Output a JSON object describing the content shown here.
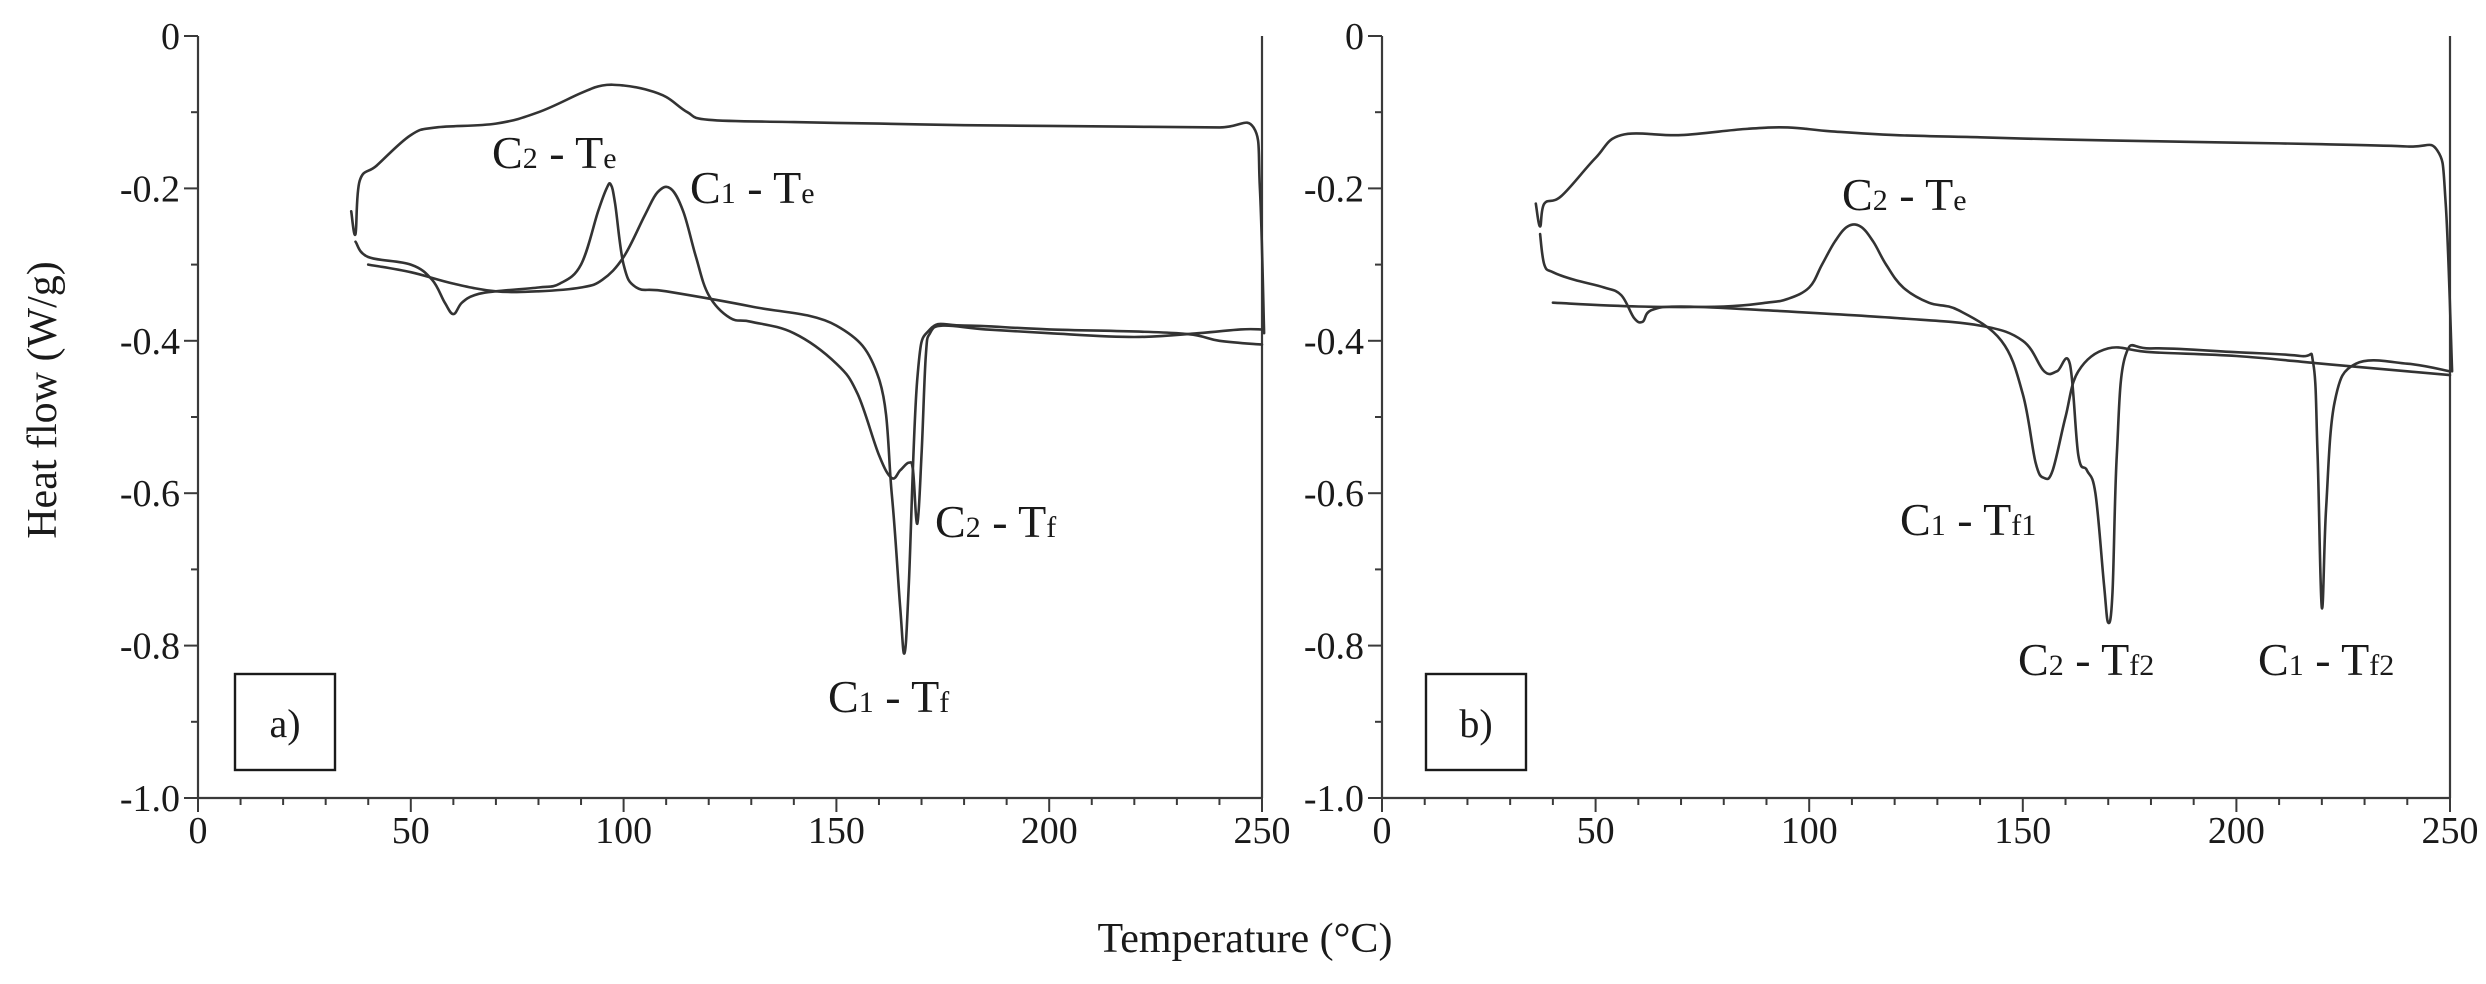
{
  "figure": {
    "ylabel": "Heat flow (W/g)",
    "xlabel": "Temperature (°C)"
  },
  "chart_data": [
    {
      "type": "line",
      "panel_label": "a)",
      "xlim": [
        0,
        250
      ],
      "ylim": [
        -1.0,
        0
      ],
      "x_ticks": [
        "0",
        "50",
        "100",
        "150",
        "200",
        "250"
      ],
      "y_ticks": [
        "0",
        "-0.2",
        "-0.4",
        "-0.6",
        "-0.8",
        "-1.0"
      ],
      "grid": false,
      "series": [
        {
          "x": [
            36,
            37,
            38,
            42,
            50,
            56,
            70,
            80,
            90,
            95,
            100,
            105,
            110,
            115,
            120,
            140,
            160,
            180,
            200,
            220,
            240,
            248,
            249.5,
            250.5
          ],
          "values": [
            -0.23,
            -0.26,
            -0.19,
            -0.17,
            -0.13,
            -0.12,
            -0.115,
            -0.1,
            -0.075,
            -0.065,
            -0.065,
            -0.07,
            -0.08,
            -0.1,
            -0.11,
            -0.113,
            -0.115,
            -0.117,
            -0.118,
            -0.119,
            -0.12,
            -0.12,
            -0.2,
            -0.39
          ]
        },
        {
          "x": [
            37,
            40,
            50,
            55,
            58,
            60,
            62,
            65,
            70,
            80,
            85,
            90,
            94,
            96,
            97,
            98,
            100,
            103,
            110,
            130,
            150,
            160,
            163,
            165,
            166,
            167,
            169,
            172,
            180,
            200,
            230,
            240,
            250
          ],
          "values": [
            -0.27,
            -0.29,
            -0.3,
            -0.32,
            -0.35,
            -0.365,
            -0.35,
            -0.34,
            -0.335,
            -0.33,
            -0.325,
            -0.3,
            -0.23,
            -0.2,
            -0.195,
            -0.22,
            -0.3,
            -0.33,
            -0.335,
            -0.355,
            -0.38,
            -0.45,
            -0.6,
            -0.75,
            -0.81,
            -0.72,
            -0.45,
            -0.385,
            -0.38,
            -0.385,
            -0.39,
            -0.4,
            -0.405
          ]
        },
        {
          "x": [
            40,
            50,
            60,
            70,
            80,
            90,
            95,
            100,
            105,
            108,
            111,
            114,
            117,
            120,
            125,
            130,
            140,
            150,
            155,
            160,
            163,
            165,
            167,
            168,
            169,
            170,
            171,
            172,
            175,
            185,
            200,
            220,
            235,
            245,
            250
          ],
          "values": [
            -0.3,
            -0.31,
            -0.325,
            -0.335,
            -0.335,
            -0.33,
            -0.32,
            -0.29,
            -0.235,
            -0.205,
            -0.2,
            -0.23,
            -0.29,
            -0.34,
            -0.37,
            -0.375,
            -0.39,
            -0.43,
            -0.47,
            -0.55,
            -0.58,
            -0.57,
            -0.56,
            -0.57,
            -0.64,
            -0.55,
            -0.42,
            -0.39,
            -0.38,
            -0.385,
            -0.39,
            -0.395,
            -0.39,
            -0.385,
            -0.385
          ]
        }
      ],
      "annotations": [
        {
          "main": "C",
          "sub": "2",
          "text": " - T",
          "sub2": "e"
        },
        {
          "main": "C",
          "sub": "1",
          "text": " - T",
          "sub2": "e"
        },
        {
          "main": "C",
          "sub": "2",
          "text": " - T",
          "sub2": "f"
        },
        {
          "main": "C",
          "sub": "1",
          "text": " - T",
          "sub2": "f"
        }
      ]
    },
    {
      "type": "line",
      "panel_label": "b)",
      "xlim": [
        0,
        250
      ],
      "ylim": [
        -1.0,
        0
      ],
      "x_ticks": [
        "0",
        "50",
        "100",
        "150",
        "200",
        "250"
      ],
      "y_ticks": [
        "0",
        "-0.2",
        "-0.4",
        "-0.6",
        "-0.8",
        "-1.0"
      ],
      "grid": false,
      "series": [
        {
          "x": [
            36,
            37,
            38,
            42,
            50,
            56,
            70,
            85,
            95,
            105,
            120,
            140,
            160,
            180,
            200,
            220,
            240,
            247,
            249,
            250.5
          ],
          "values": [
            -0.22,
            -0.25,
            -0.22,
            -0.21,
            -0.16,
            -0.13,
            -0.13,
            -0.122,
            -0.12,
            -0.125,
            -0.13,
            -0.133,
            -0.136,
            -0.138,
            -0.14,
            -0.142,
            -0.145,
            -0.15,
            -0.22,
            -0.44
          ]
        },
        {
          "x": [
            37,
            38,
            40,
            45,
            52,
            56,
            59,
            61,
            63,
            70,
            90,
            120,
            140,
            150,
            155,
            158,
            161,
            163,
            165,
            167,
            169,
            170,
            171,
            172,
            174,
            180,
            200,
            215,
            218,
            219,
            220,
            221,
            223,
            228,
            240,
            250
          ],
          "values": [
            -0.26,
            -0.3,
            -0.31,
            -0.32,
            -0.33,
            -0.34,
            -0.37,
            -0.375,
            -0.36,
            -0.355,
            -0.36,
            -0.37,
            -0.38,
            -0.4,
            -0.44,
            -0.44,
            -0.43,
            -0.55,
            -0.57,
            -0.6,
            -0.72,
            -0.77,
            -0.73,
            -0.55,
            -0.42,
            -0.41,
            -0.415,
            -0.42,
            -0.43,
            -0.55,
            -0.75,
            -0.62,
            -0.48,
            -0.43,
            -0.43,
            -0.44
          ]
        },
        {
          "x": [
            40,
            60,
            80,
            90,
            95,
            100,
            103,
            106,
            109,
            112,
            115,
            118,
            122,
            128,
            135,
            145,
            150,
            153,
            155,
            157,
            160,
            163,
            170,
            180,
            200,
            220,
            240,
            250
          ],
          "values": [
            -0.35,
            -0.355,
            -0.355,
            -0.35,
            -0.345,
            -0.33,
            -0.3,
            -0.27,
            -0.25,
            -0.25,
            -0.27,
            -0.3,
            -0.33,
            -0.35,
            -0.36,
            -0.4,
            -0.47,
            -0.56,
            -0.58,
            -0.57,
            -0.5,
            -0.44,
            -0.41,
            -0.415,
            -0.42,
            -0.43,
            -0.44,
            -0.445
          ]
        }
      ],
      "annotations": [
        {
          "main": "C",
          "sub": "2",
          "text": " - T",
          "sub2": "e"
        },
        {
          "main": "C",
          "sub": "1",
          "text": " - T",
          "sub2": "f1"
        },
        {
          "main": "C",
          "sub": "2",
          "text": " - T",
          "sub2": "f2"
        },
        {
          "main": "C",
          "sub": "1",
          "text": " - T",
          "sub2": "f2"
        }
      ]
    }
  ]
}
